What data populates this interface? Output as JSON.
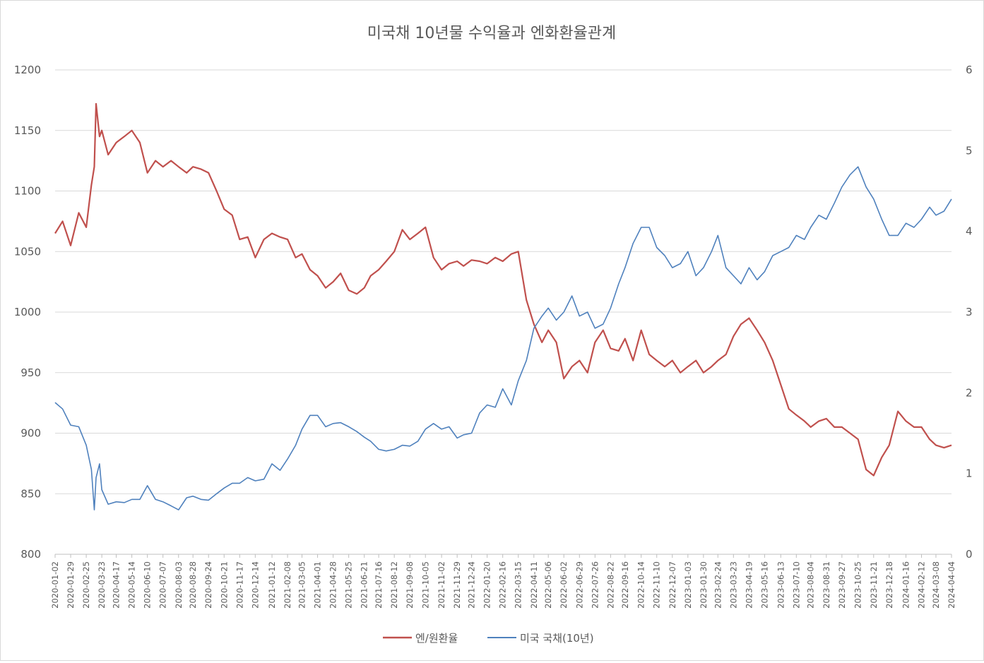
{
  "chart_data": {
    "type": "line",
    "title": "미국채 10년물 수익율과 엔화환율관계",
    "xlabel": "",
    "ylabel": "",
    "y_left": {
      "ticks": [
        800,
        850,
        900,
        950,
        1000,
        1050,
        1100,
        1150,
        1200
      ],
      "range": [
        800,
        1200
      ]
    },
    "y_right": {
      "ticks": [
        0,
        1,
        2,
        3,
        4,
        5,
        6
      ],
      "range": [
        0,
        6
      ]
    },
    "x_tick_labels": [
      "2020-01-02",
      "2020-01-29",
      "2020-02-25",
      "2020-03-23",
      "2020-04-17",
      "2020-05-14",
      "2020-06-10",
      "2020-07-07",
      "2020-08-03",
      "2020-08-28",
      "2020-09-24",
      "2020-10-21",
      "2020-11-17",
      "2020-12-14",
      "2021-01-12",
      "2021-02-08",
      "2021-03-05",
      "2021-04-01",
      "2021-04-28",
      "2021-05-25",
      "2021-06-21",
      "2021-07-16",
      "2021-08-12",
      "2021-09-08",
      "2021-10-05",
      "2021-11-02",
      "2021-11-29",
      "2021-12-24",
      "2022-01-20",
      "2022-02-16",
      "2022-03-15",
      "2022-04-11",
      "2022-05-06",
      "2022-06-02",
      "2022-06-29",
      "2022-07-26",
      "2022-08-22",
      "2022-09-16",
      "2022-10-14",
      "2022-11-10",
      "2022-12-07",
      "2023-01-03",
      "2023-01-30",
      "2023-02-24",
      "2023-03-23",
      "2023-04-19",
      "2023-05-16",
      "2023-06-13",
      "2023-07-10",
      "2023-08-04",
      "2023-08-31",
      "2023-09-27",
      "2023-10-25",
      "2023-11-21",
      "2023-12-18",
      "2024-01-16",
      "2024-02-12",
      "2024-03-08",
      "2024-04-04"
    ],
    "grid": true,
    "legend_position": "bottom",
    "series": [
      {
        "name": "엔/원환율",
        "axis": "left",
        "color": "#c0504d",
        "x": [
          "2020-01-02",
          "2020-01-15",
          "2020-01-29",
          "2020-02-12",
          "2020-02-25",
          "2020-03-05",
          "2020-03-10",
          "2020-03-13",
          "2020-03-19",
          "2020-03-23",
          "2020-04-03",
          "2020-04-17",
          "2020-05-01",
          "2020-05-14",
          "2020-05-28",
          "2020-06-10",
          "2020-06-24",
          "2020-07-07",
          "2020-07-21",
          "2020-08-03",
          "2020-08-17",
          "2020-08-28",
          "2020-09-11",
          "2020-09-24",
          "2020-10-08",
          "2020-10-21",
          "2020-11-04",
          "2020-11-17",
          "2020-12-01",
          "2020-12-14",
          "2020-12-29",
          "2021-01-12",
          "2021-01-26",
          "2021-02-08",
          "2021-02-22",
          "2021-03-05",
          "2021-03-19",
          "2021-04-01",
          "2021-04-15",
          "2021-04-28",
          "2021-05-11",
          "2021-05-25",
          "2021-06-08",
          "2021-06-21",
          "2021-07-02",
          "2021-07-16",
          "2021-07-29",
          "2021-08-12",
          "2021-08-26",
          "2021-09-08",
          "2021-09-22",
          "2021-10-05",
          "2021-10-19",
          "2021-11-02",
          "2021-11-15",
          "2021-11-29",
          "2021-12-10",
          "2021-12-24",
          "2022-01-07",
          "2022-01-20",
          "2022-02-03",
          "2022-02-16",
          "2022-03-03",
          "2022-03-15",
          "2022-03-29",
          "2022-04-11",
          "2022-04-25",
          "2022-05-06",
          "2022-05-20",
          "2022-06-02",
          "2022-06-16",
          "2022-06-29",
          "2022-07-13",
          "2022-07-26",
          "2022-08-09",
          "2022-08-22",
          "2022-09-05",
          "2022-09-16",
          "2022-09-30",
          "2022-10-14",
          "2022-10-28",
          "2022-11-10",
          "2022-11-24",
          "2022-12-07",
          "2022-12-21",
          "2023-01-03",
          "2023-01-17",
          "2023-01-30",
          "2023-02-13",
          "2023-02-24",
          "2023-03-10",
          "2023-03-23",
          "2023-04-05",
          "2023-04-19",
          "2023-05-03",
          "2023-05-16",
          "2023-05-30",
          "2023-06-13",
          "2023-06-27",
          "2023-07-10",
          "2023-07-24",
          "2023-08-04",
          "2023-08-18",
          "2023-08-31",
          "2023-09-14",
          "2023-09-27",
          "2023-10-11",
          "2023-10-25",
          "2023-11-08",
          "2023-11-21",
          "2023-12-05",
          "2023-12-18",
          "2024-01-02",
          "2024-01-16",
          "2024-01-30",
          "2024-02-12",
          "2024-02-26",
          "2024-03-08",
          "2024-03-22",
          "2024-04-04"
        ],
        "values": [
          1065,
          1075,
          1055,
          1082,
          1070,
          1105,
          1120,
          1172,
          1145,
          1150,
          1130,
          1140,
          1145,
          1150,
          1140,
          1115,
          1125,
          1120,
          1125,
          1120,
          1115,
          1120,
          1118,
          1115,
          1100,
          1085,
          1080,
          1060,
          1062,
          1045,
          1060,
          1065,
          1062,
          1060,
          1045,
          1048,
          1035,
          1030,
          1020,
          1025,
          1032,
          1018,
          1015,
          1020,
          1030,
          1035,
          1042,
          1050,
          1068,
          1060,
          1065,
          1070,
          1045,
          1035,
          1040,
          1042,
          1038,
          1043,
          1042,
          1040,
          1045,
          1042,
          1048,
          1050,
          1010,
          990,
          975,
          985,
          975,
          945,
          955,
          960,
          950,
          975,
          985,
          970,
          968,
          978,
          960,
          985,
          965,
          960,
          955,
          960,
          950,
          955,
          960,
          950,
          955,
          960,
          965,
          980,
          990,
          995,
          985,
          975,
          960,
          940,
          920,
          915,
          910,
          905,
          910,
          912,
          905,
          905,
          900,
          895,
          870,
          865,
          880,
          890,
          918,
          910,
          905,
          905,
          895,
          890,
          888,
          890
        ]
      },
      {
        "name": "미국 국채(10년)",
        "axis": "right",
        "color": "#4f81bd",
        "x": [
          "2020-01-02",
          "2020-01-15",
          "2020-01-29",
          "2020-02-12",
          "2020-02-25",
          "2020-03-05",
          "2020-03-10",
          "2020-03-13",
          "2020-03-19",
          "2020-03-23",
          "2020-04-03",
          "2020-04-17",
          "2020-05-01",
          "2020-05-14",
          "2020-05-28",
          "2020-06-10",
          "2020-06-24",
          "2020-07-07",
          "2020-07-21",
          "2020-08-03",
          "2020-08-17",
          "2020-08-28",
          "2020-09-11",
          "2020-09-24",
          "2020-10-08",
          "2020-10-21",
          "2020-11-04",
          "2020-11-17",
          "2020-12-01",
          "2020-12-14",
          "2020-12-29",
          "2021-01-12",
          "2021-01-26",
          "2021-02-08",
          "2021-02-22",
          "2021-03-05",
          "2021-03-19",
          "2021-04-01",
          "2021-04-15",
          "2021-04-28",
          "2021-05-11",
          "2021-05-25",
          "2021-06-08",
          "2021-06-21",
          "2021-07-02",
          "2021-07-16",
          "2021-07-29",
          "2021-08-12",
          "2021-08-26",
          "2021-09-08",
          "2021-09-22",
          "2021-10-05",
          "2021-10-19",
          "2021-11-02",
          "2021-11-15",
          "2021-11-29",
          "2021-12-10",
          "2021-12-24",
          "2022-01-07",
          "2022-01-20",
          "2022-02-03",
          "2022-02-16",
          "2022-03-03",
          "2022-03-15",
          "2022-03-29",
          "2022-04-11",
          "2022-04-25",
          "2022-05-06",
          "2022-05-20",
          "2022-06-02",
          "2022-06-16",
          "2022-06-29",
          "2022-07-13",
          "2022-07-26",
          "2022-08-09",
          "2022-08-22",
          "2022-09-05",
          "2022-09-16",
          "2022-09-30",
          "2022-10-14",
          "2022-10-28",
          "2022-11-10",
          "2022-11-24",
          "2022-12-07",
          "2022-12-21",
          "2023-01-03",
          "2023-01-17",
          "2023-01-30",
          "2023-02-13",
          "2023-02-24",
          "2023-03-10",
          "2023-03-23",
          "2023-04-05",
          "2023-04-19",
          "2023-05-03",
          "2023-05-16",
          "2023-05-30",
          "2023-06-13",
          "2023-06-27",
          "2023-07-10",
          "2023-07-24",
          "2023-08-04",
          "2023-08-18",
          "2023-08-31",
          "2023-09-14",
          "2023-09-27",
          "2023-10-11",
          "2023-10-25",
          "2023-11-08",
          "2023-11-21",
          "2023-12-05",
          "2023-12-18",
          "2024-01-02",
          "2024-01-16",
          "2024-01-30",
          "2024-02-12",
          "2024-02-26",
          "2024-03-08",
          "2024-03-22",
          "2024-04-04"
        ],
        "values": [
          1.88,
          1.8,
          1.6,
          1.58,
          1.35,
          1.05,
          0.55,
          0.95,
          1.12,
          0.8,
          0.62,
          0.65,
          0.64,
          0.68,
          0.68,
          0.85,
          0.68,
          0.65,
          0.6,
          0.55,
          0.7,
          0.72,
          0.68,
          0.67,
          0.75,
          0.82,
          0.88,
          0.88,
          0.95,
          0.91,
          0.93,
          1.12,
          1.04,
          1.18,
          1.35,
          1.55,
          1.72,
          1.72,
          1.58,
          1.62,
          1.63,
          1.58,
          1.52,
          1.45,
          1.4,
          1.3,
          1.28,
          1.3,
          1.35,
          1.34,
          1.4,
          1.55,
          1.62,
          1.55,
          1.58,
          1.44,
          1.48,
          1.5,
          1.75,
          1.85,
          1.82,
          2.05,
          1.85,
          2.15,
          2.4,
          2.8,
          2.95,
          3.05,
          2.9,
          3.0,
          3.2,
          2.95,
          3.0,
          2.8,
          2.85,
          3.05,
          3.35,
          3.55,
          3.85,
          4.05,
          4.05,
          3.8,
          3.7,
          3.55,
          3.6,
          3.75,
          3.45,
          3.55,
          3.75,
          3.95,
          3.55,
          3.45,
          3.35,
          3.55,
          3.4,
          3.5,
          3.7,
          3.75,
          3.8,
          3.95,
          3.9,
          4.05,
          4.2,
          4.15,
          4.35,
          4.55,
          4.7,
          4.8,
          4.55,
          4.4,
          4.15,
          3.95,
          3.95,
          4.1,
          4.05,
          4.15,
          4.3,
          4.2,
          4.25,
          4.4
        ]
      }
    ]
  }
}
